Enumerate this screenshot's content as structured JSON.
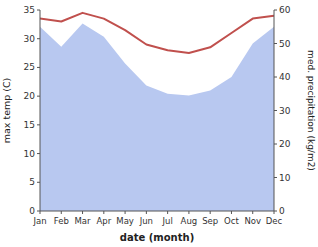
{
  "chart_data": {
    "type": "line",
    "categories": [
      "Jan",
      "Feb",
      "Mar",
      "Apr",
      "May",
      "Jun",
      "Jul",
      "Aug",
      "Sep",
      "Oct",
      "Nov",
      "Dec"
    ],
    "xlabel": "date (month)",
    "ylabel": "max temp (C)",
    "y2label": "med. precipitation (kg/m2)",
    "ylim": [
      0,
      35
    ],
    "yticks": [
      0,
      5,
      10,
      15,
      20,
      25,
      30,
      35
    ],
    "y2lim": [
      0,
      60
    ],
    "y2ticks": [
      0,
      10,
      20,
      30,
      40,
      50,
      60
    ],
    "grid": false,
    "series": [
      {
        "type": "area",
        "axis": "y2",
        "color": "#b8c8f0",
        "values": [
          55.0,
          49.0,
          56.0,
          52.0,
          44.0,
          37.5,
          35.0,
          34.5,
          36.0,
          40.0,
          50.0,
          55.0
        ]
      },
      {
        "type": "line",
        "color": "#c0504d",
        "values": [
          33.5,
          33.0,
          34.5,
          33.5,
          31.5,
          29.0,
          28.0,
          27.5,
          28.5,
          31.0,
          33.5,
          34.0
        ]
      }
    ]
  }
}
